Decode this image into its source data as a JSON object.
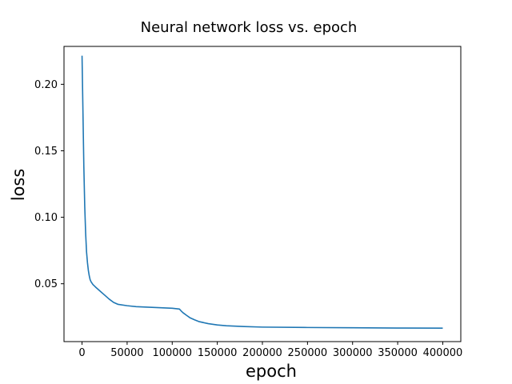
{
  "chart_data": {
    "type": "line",
    "title": "Neural network   loss vs. epoch",
    "xlabel": "epoch",
    "ylabel": "loss",
    "xlim": [
      -20000,
      420000
    ],
    "ylim": [
      0.0065,
      0.2285
    ],
    "xticks": [
      0,
      50000,
      100000,
      150000,
      200000,
      250000,
      300000,
      350000,
      400000
    ],
    "xtick_labels": [
      "0",
      "50000",
      "100000",
      "150000",
      "200000",
      "250000",
      "300000",
      "350000",
      "400000"
    ],
    "yticks": [
      0.05,
      0.1,
      0.15,
      0.2
    ],
    "ytick_labels": [
      "0.05",
      "0.10",
      "0.15",
      "0.20"
    ],
    "grid": false,
    "series": [
      {
        "color": "#1f77b4",
        "x": [
          0,
          1000,
          2000,
          3000,
          4000,
          5000,
          6000,
          7000,
          8000,
          9000,
          10000,
          12000,
          15000,
          20000,
          25000,
          30000,
          35000,
          40000,
          50000,
          60000,
          70000,
          80000,
          90000,
          100000,
          108000,
          110000,
          112000,
          116000,
          120000,
          125000,
          130000,
          140000,
          150000,
          160000,
          180000,
          200000,
          250000,
          300000,
          350000,
          400000
        ],
        "y": [
          0.2215,
          0.18,
          0.138,
          0.108,
          0.088,
          0.074,
          0.066,
          0.06,
          0.056,
          0.053,
          0.0515,
          0.0495,
          0.0475,
          0.0445,
          0.0415,
          0.0385,
          0.036,
          0.0345,
          0.0335,
          0.0328,
          0.0325,
          0.0322,
          0.0319,
          0.0316,
          0.031,
          0.0295,
          0.0282,
          0.0262,
          0.0243,
          0.0228,
          0.0215,
          0.02,
          0.019,
          0.0184,
          0.0178,
          0.0174,
          0.0171,
          0.0169,
          0.0167,
          0.0166
        ]
      }
    ]
  }
}
